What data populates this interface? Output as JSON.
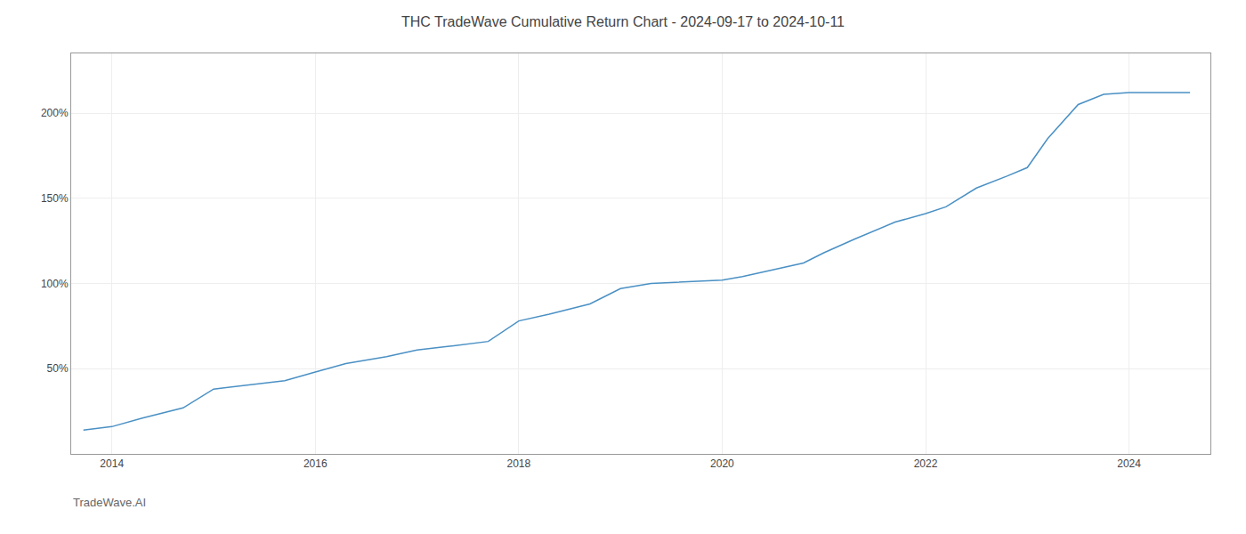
{
  "chart_data": {
    "type": "line",
    "title": "THC TradeWave Cumulative Return Chart - 2024-09-17 to 2024-10-11",
    "annotations": [
      "TradeWave.AI"
    ],
    "x": [
      2013.72,
      2014.0,
      2014.3,
      2014.7,
      2015.0,
      2015.3,
      2015.7,
      2016.0,
      2016.3,
      2016.7,
      2017.0,
      2017.3,
      2017.7,
      2018.0,
      2018.3,
      2018.7,
      2019.0,
      2019.3,
      2019.7,
      2020.0,
      2020.2,
      2020.5,
      2020.8,
      2021.0,
      2021.3,
      2021.7,
      2022.0,
      2022.2,
      2022.5,
      2022.8,
      2023.0,
      2023.2,
      2023.5,
      2023.75,
      2024.0,
      2024.3,
      2024.6
    ],
    "values": [
      14,
      16,
      21,
      27,
      38,
      40,
      43,
      48,
      53,
      57,
      61,
      63,
      66,
      78,
      82,
      88,
      97,
      100,
      101,
      102,
      104,
      108,
      112,
      118,
      126,
      136,
      141,
      145,
      156,
      163,
      168,
      185,
      205,
      211,
      212,
      212,
      212
    ],
    "color": "#4a90c4",
    "xlim": [
      2013.6,
      2024.8
    ],
    "xticks": [
      2014,
      2016,
      2018,
      2020,
      2022,
      2024
    ],
    "ylim": [
      0,
      235
    ],
    "yticks": [
      {
        "value": 50,
        "label": "50%"
      },
      {
        "value": 100,
        "label": "100%"
      },
      {
        "value": 150,
        "label": "150%"
      },
      {
        "value": 200,
        "label": "200%"
      }
    ],
    "grid": true
  }
}
